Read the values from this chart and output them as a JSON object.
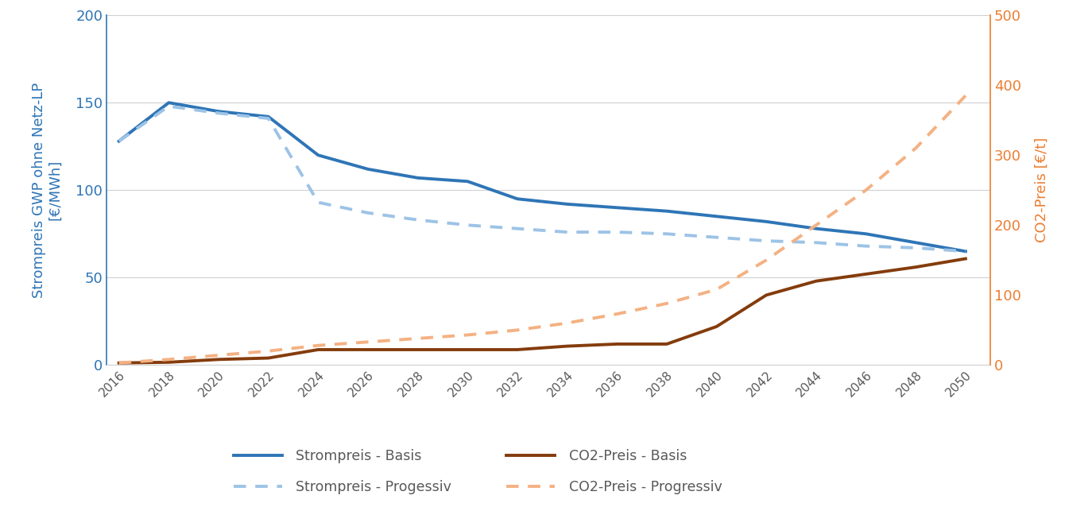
{
  "years": [
    2016,
    2018,
    2020,
    2022,
    2024,
    2026,
    2028,
    2030,
    2032,
    2034,
    2036,
    2038,
    2040,
    2042,
    2044,
    2046,
    2048,
    2050
  ],
  "strompreis_basis": [
    128,
    150,
    145,
    142,
    120,
    112,
    107,
    105,
    95,
    92,
    90,
    88,
    85,
    82,
    78,
    75,
    70,
    65
  ],
  "strompreis_progressiv": [
    128,
    148,
    144,
    141,
    93,
    87,
    83,
    80,
    78,
    76,
    76,
    75,
    73,
    71,
    70,
    68,
    67,
    65
  ],
  "co2_basis": [
    3,
    4,
    8,
    10,
    22,
    22,
    22,
    22,
    22,
    27,
    30,
    30,
    55,
    100,
    120,
    130,
    140,
    152
  ],
  "co2_progressiv": [
    3,
    8,
    14,
    20,
    28,
    33,
    38,
    43,
    50,
    60,
    73,
    88,
    108,
    150,
    200,
    250,
    310,
    385
  ],
  "strompreis_basis_color": "#2E75B6",
  "strompreis_progressiv_color": "#9DC3E6",
  "co2_basis_color": "#843C0C",
  "co2_progressiv_color": "#F4B183",
  "left_axis_color": "#2E75B6",
  "right_axis_color": "#ED7D31",
  "left_ylabel_line1": "Strompreis GWP ohne Netz-LP",
  "left_ylabel_line2": "[€/MWh]",
  "right_ylabel": "CO2-Preis [€/t]",
  "left_ylim": [
    0,
    200
  ],
  "right_ylim": [
    0,
    500
  ],
  "left_yticks": [
    0,
    50,
    100,
    150,
    200
  ],
  "right_yticks": [
    0,
    100,
    200,
    300,
    400,
    500
  ],
  "xlim": [
    2015.5,
    2051
  ],
  "xticks": [
    2016,
    2018,
    2020,
    2022,
    2024,
    2026,
    2028,
    2030,
    2032,
    2034,
    2036,
    2038,
    2040,
    2042,
    2044,
    2046,
    2048,
    2050
  ],
  "background_color": "#FFFFFF",
  "grid_color": "#D0D0D0",
  "tick_color": "#595959",
  "legend_strompreis_basis": "Strompreis - Basis",
  "legend_strompreis_progressiv": "Strompreis - Progessiv",
  "legend_co2_basis": "CO2-Preis - Basis",
  "legend_co2_progressiv": "CO2-Preis - Progressiv"
}
